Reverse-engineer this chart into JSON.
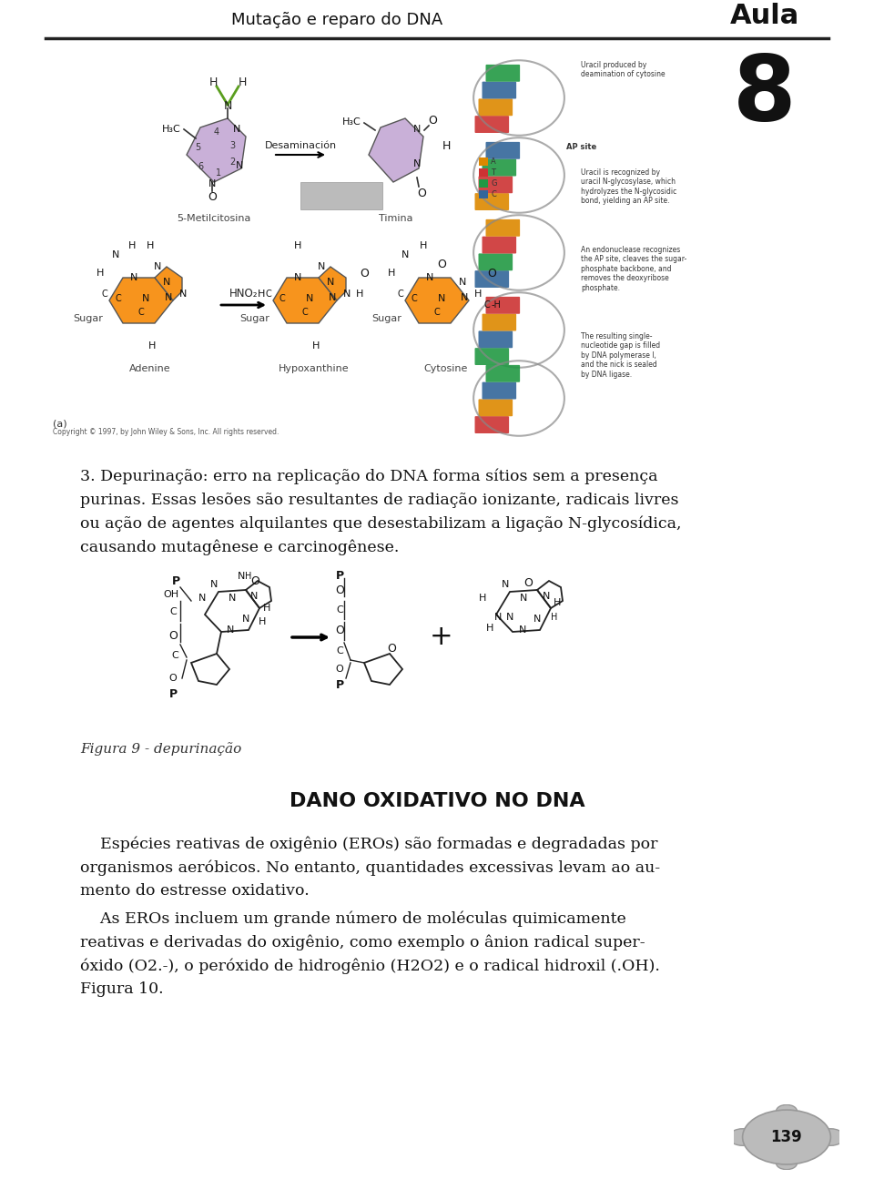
{
  "page_width": 9.6,
  "page_height": 12.95,
  "background_color": "#ffffff",
  "header_title": "Mutação e reparo do DNA",
  "header_aula": "Aula",
  "header_number": "8",
  "header_title_fontsize": 13,
  "header_aula_fontsize": 22,
  "header_number_fontsize": 72,
  "line_color": "#222222",
  "body_fontsize": 12.5,
  "caption_fontsize": 11,
  "section_title": "DANO OXIDATIVO NO DNA",
  "section_title_fontsize": 16,
  "page_number": "139",
  "figura_caption": "Figura 9 - depurinação",
  "para1_lines": [
    "3. Depurinação: erro na replicação do DNA forma sítios sem a presença",
    "purinas. Essas lesões são resultantes de radiação ionizante, radicais livres",
    "ou ação de agentes alquilantes que desestabilizam a ligação N-glycosídica,",
    "causando mutagênese e carcinogênese."
  ],
  "para2_lines": [
    "    Espécies reativas de oxigênio (EROs) são formadas e degradadas por",
    "organismos aeróbicos. No entanto, quantidades excessivas levam ao au-",
    "mento do estresse oxidativo."
  ],
  "para3_lines": [
    "    As EROs incluem um grande número de moléculas quimicamente",
    "reativas e derivadas do oxigênio, como exemplo o ânion radical super-",
    "óxido (O2.-), o peróxido de hidrogênio (H2O2) e o radical hidroxil (.OH).",
    "Figura 10."
  ]
}
